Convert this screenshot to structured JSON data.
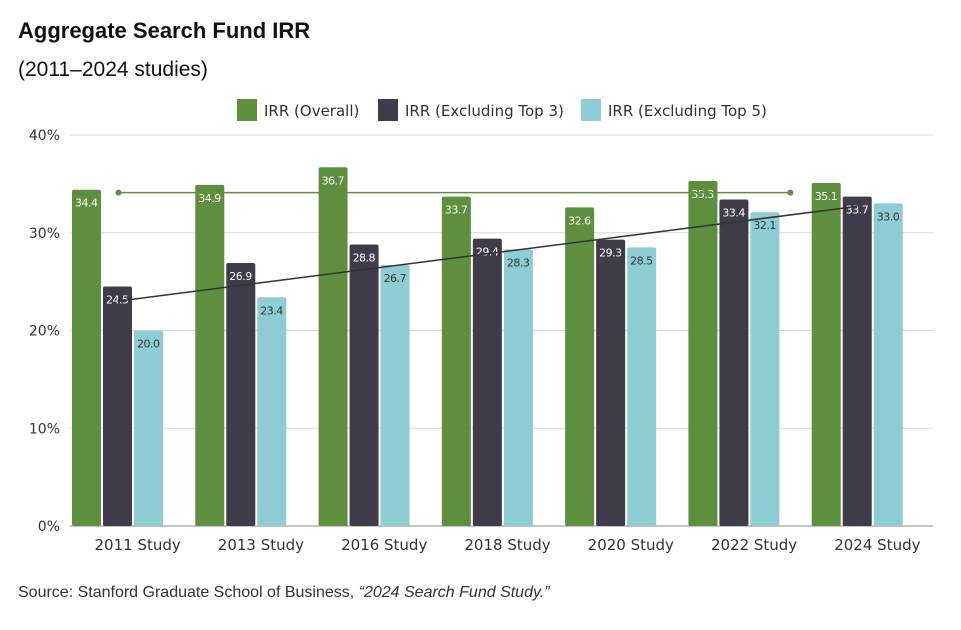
{
  "header": {
    "title": "Aggregate Search Fund IRR",
    "subtitle": "(2011–2024 studies)"
  },
  "source": {
    "prefix": "Source: Stanford Graduate School of Business, ",
    "publication": "“2024 Search Fund Study.”"
  },
  "chart_data": {
    "type": "bar",
    "title": "Aggregate Search Fund IRR",
    "subtitle": "(2011–2024 studies)",
    "categories": [
      "2011 Study",
      "2013 Study",
      "2016 Study",
      "2018 Study",
      "2020 Study",
      "2022 Study",
      "2024 Study"
    ],
    "series": [
      {
        "name": "IRR (Overall)",
        "color": "#5e8f3f",
        "values": [
          34.4,
          34.9,
          36.7,
          33.7,
          32.6,
          35.3,
          35.1
        ]
      },
      {
        "name": "IRR (Excluding Top 3)",
        "color": "#403b4a",
        "values": [
          24.5,
          26.9,
          28.8,
          29.4,
          29.3,
          33.4,
          33.7
        ]
      },
      {
        "name": "IRR (Excluding Top 5)",
        "color": "#8ecdd4",
        "values": [
          20.0,
          23.4,
          26.7,
          28.3,
          28.5,
          32.1,
          33.0
        ]
      }
    ],
    "data_labels": [
      [
        "34.4",
        "34.9",
        "36.7",
        "33.7",
        "32.6",
        "35.3",
        "35.1"
      ],
      [
        "24.5",
        "26.9",
        "28.8",
        "29.4",
        "29.3",
        "33.4",
        "33.7"
      ],
      [
        "20.0",
        "23.4",
        "26.7",
        "28.3",
        "28.5",
        "32.1",
        "33.0"
      ]
    ],
    "y_ticks": [
      {
        "value": 0,
        "label": "0%"
      },
      {
        "value": 10,
        "label": "10%"
      },
      {
        "value": 20,
        "label": "20%"
      },
      {
        "value": 30,
        "label": "30%"
      },
      {
        "value": 40,
        "label": "40%"
      }
    ],
    "ylim": [
      0,
      40
    ],
    "grid": true,
    "legend_position": "top-center",
    "trendlines": [
      {
        "series": "IRR (Overall)",
        "color": "#5e8f3f",
        "from_category": "2011 Study",
        "to_category": "2022 Study",
        "start_value": 34.1,
        "end_value": 34.1,
        "end_markers": true
      },
      {
        "series": "IRR (Excluding Top 3)",
        "color": "#333333",
        "from_category": "2011 Study",
        "to_category": "2024 Study",
        "start_value": 23.0,
        "end_value": 32.7,
        "end_markers": false
      }
    ]
  }
}
